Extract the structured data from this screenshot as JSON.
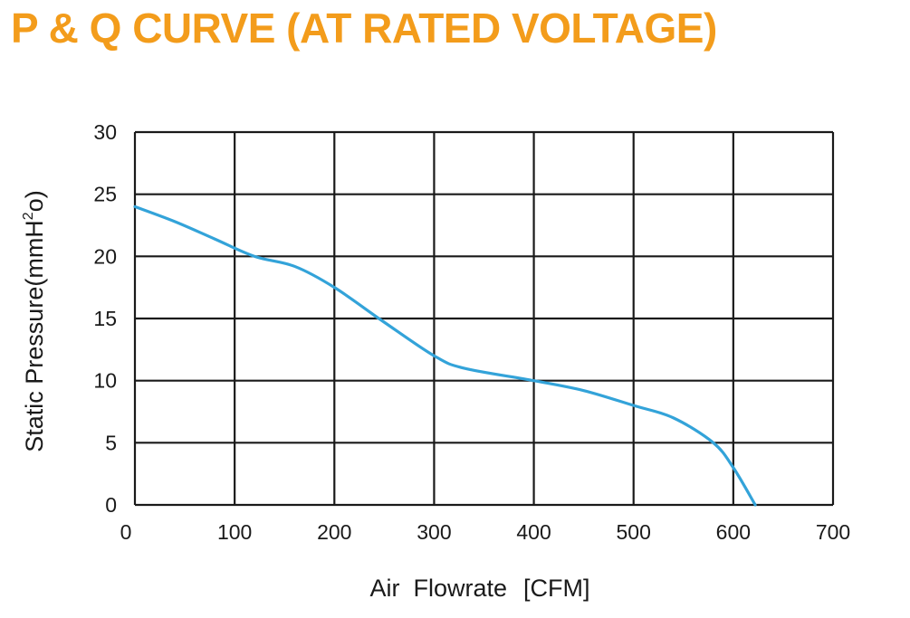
{
  "chart_data": {
    "type": "line",
    "title": "P & Q CURVE (AT RATED VOLTAGE)",
    "xlabel_parts": [
      "Air  Flowrate",
      "[CFM]"
    ],
    "ylabel": {
      "before": "Static Pressure(mmH",
      "sup": "2",
      "after": "o)"
    },
    "xlim": [
      0,
      700
    ],
    "ylim": [
      0,
      30
    ],
    "x_ticks": [
      "0",
      "100",
      "200",
      "300",
      "400",
      "500",
      "600",
      "700"
    ],
    "y_ticks": [
      "0",
      "5",
      "10",
      "15",
      "20",
      "25",
      "30"
    ],
    "grid": true,
    "series": [
      {
        "x": [
          0,
          40,
          80,
          120,
          160,
          200,
          250,
          300,
          330,
          400,
          450,
          500,
          540,
          580,
          600,
          622
        ],
        "y": [
          24,
          22.8,
          21.4,
          20,
          19.2,
          17.5,
          14.7,
          12,
          11,
          10,
          9.2,
          8,
          7,
          5,
          3,
          0
        ]
      }
    ]
  },
  "colors": {
    "title": "#f39c1b",
    "curve": "#33a3d9",
    "grid": "#1a1a1a"
  }
}
